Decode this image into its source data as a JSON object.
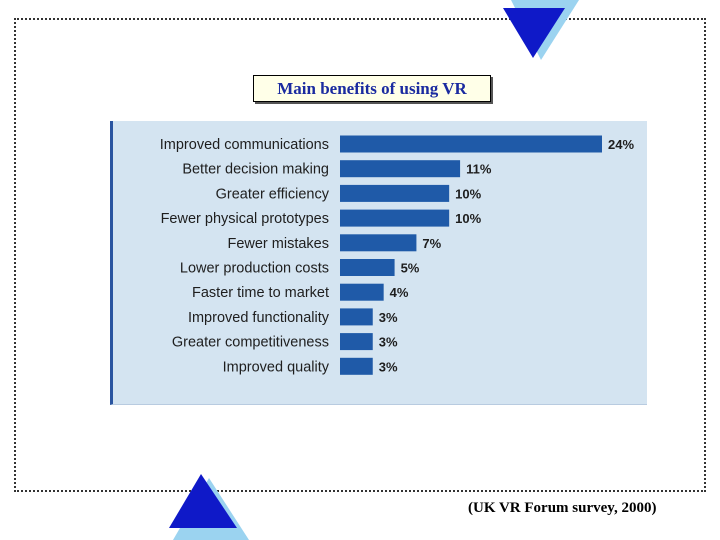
{
  "title": "Main benefits of using VR",
  "source": "(UK VR Forum survey, 2000)",
  "colors": {
    "bar": "#1f5aa8",
    "panel": "#d4e4f1",
    "triangle": "#0f19c8",
    "triangle_shadow": "#9bd3f0",
    "title_text": "#1a2aa0"
  },
  "chart_data": {
    "type": "bar",
    "orientation": "horizontal",
    "title": "Main benefits of using VR",
    "categories": [
      "Improved communications",
      "Better decision making",
      "Greater efficiency",
      "Fewer physical prototypes",
      "Fewer mistakes",
      "Lower production costs",
      "Faster time to market",
      "Improved functionality",
      "Greater competitiveness",
      "Improved quality"
    ],
    "values": [
      24,
      11,
      10,
      10,
      7,
      5,
      4,
      3,
      3,
      3
    ],
    "value_labels": [
      "24%",
      "11%",
      "10%",
      "10%",
      "7%",
      "5%",
      "4%",
      "3%",
      "3%",
      "3%"
    ],
    "xlim": [
      0,
      24
    ],
    "grid": false
  }
}
